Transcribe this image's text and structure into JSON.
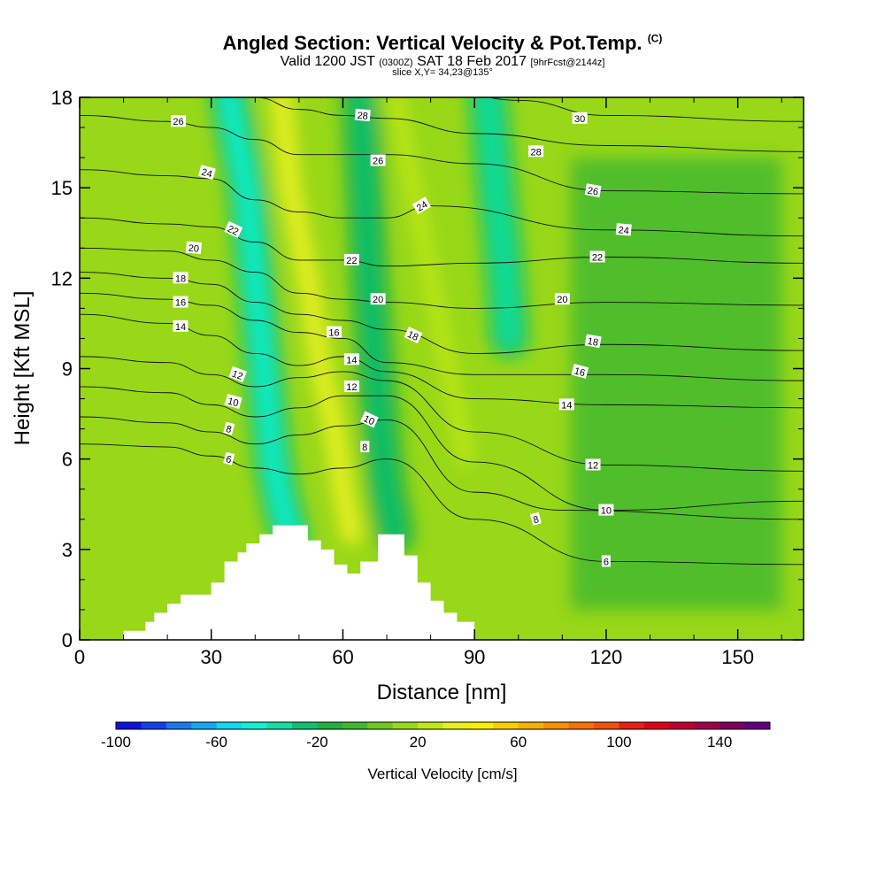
{
  "header": {
    "title": "Angled Section: Vertical Velocity & Pot.Temp.",
    "title_tag": "(C)",
    "valid_prefix": "Valid 1200 JST",
    "valid_utc": "(0300Z)",
    "valid_date": "SAT 18 Feb 2017",
    "forecast_tag": "[9hrFcst@2144z]",
    "slice": "slice X,Y= 34,23@135°"
  },
  "chart_data": {
    "type": "heatmap",
    "xlabel": "Distance [nm]",
    "ylabel": "Height [Kft MSL]",
    "xlim": [
      0,
      165
    ],
    "ylim": [
      0,
      18
    ],
    "xticks": [
      "0",
      "30",
      "60",
      "90",
      "120",
      "150"
    ],
    "yticks": [
      "0",
      "3",
      "6",
      "9",
      "12",
      "15",
      "18"
    ],
    "colorbar": {
      "label": "Vertical Velocity [cm/s]",
      "min": -100,
      "max": 150,
      "step": 10,
      "tick_labels": [
        "-100",
        "-60",
        "-20",
        "20",
        "60",
        "100",
        "140"
      ],
      "colors": [
        "#1010e0",
        "#1040f0",
        "#1878f0",
        "#10a8f0",
        "#10d8f0",
        "#10f0d0",
        "#10e0a0",
        "#10c070",
        "#20b040",
        "#40b830",
        "#70c820",
        "#98d818",
        "#c0e818",
        "#e8f020",
        "#f8f000",
        "#f8d000",
        "#f8b000",
        "#f89000",
        "#f87000",
        "#f05010",
        "#e82010",
        "#e00018",
        "#c00030",
        "#a00048",
        "#800060",
        "#600080"
      ]
    },
    "velocity_regions": [
      {
        "name": "downdraft-west",
        "x": [
          34,
          38,
          40,
          42,
          44,
          46,
          48
        ],
        "y": [
          18,
          15,
          12,
          9,
          6,
          4.5,
          3.5
        ],
        "value": -50
      },
      {
        "name": "updraft-west",
        "x": [
          46,
          48,
          52,
          55,
          58,
          60,
          62
        ],
        "y": [
          18,
          15,
          12,
          9,
          7,
          5,
          3.5
        ],
        "value": 30
      },
      {
        "name": "downdraft-central",
        "x": [
          64,
          66,
          68,
          70,
          72
        ],
        "y": [
          18,
          12,
          8,
          5,
          3.5
        ],
        "value": -30
      },
      {
        "name": "updraft-central",
        "x": [
          72,
          76,
          80,
          84,
          88
        ],
        "y": [
          18,
          15,
          12,
          9,
          6
        ],
        "value": 20
      },
      {
        "name": "downdraft-east",
        "x": [
          93,
          95,
          97,
          98
        ],
        "y": [
          18,
          15,
          12,
          10
        ],
        "value": -40
      },
      {
        "name": "sink-plateau-east",
        "x": [
          112,
          160
        ],
        "y": [
          1,
          16
        ],
        "value": -10
      }
    ],
    "isentropes": [
      {
        "value": 6,
        "x": [
          0,
          20,
          30,
          40,
          50,
          60,
          70,
          90,
          120,
          165
        ],
        "y": [
          6.5,
          6.4,
          6.1,
          5.7,
          5.5,
          5.7,
          6.0,
          4.0,
          2.6,
          2.5
        ]
      },
      {
        "value": 8,
        "x": [
          0,
          20,
          30,
          40,
          50,
          60,
          70,
          90,
          110,
          165
        ],
        "y": [
          7.4,
          7.2,
          6.9,
          6.5,
          6.8,
          7.1,
          7.3,
          4.9,
          4.3,
          4.0
        ]
      },
      {
        "value": 10,
        "x": [
          0,
          20,
          30,
          40,
          50,
          60,
          70,
          90,
          120,
          165
        ],
        "y": [
          8.4,
          8.2,
          7.8,
          7.4,
          7.7,
          8.1,
          8.1,
          5.9,
          4.3,
          4.6
        ]
      },
      {
        "value": 12,
        "x": [
          0,
          20,
          30,
          40,
          50,
          60,
          70,
          90,
          120,
          165
        ],
        "y": [
          9.4,
          9.2,
          8.8,
          8.4,
          8.7,
          8.9,
          8.6,
          6.9,
          5.8,
          5.6
        ]
      },
      {
        "value": 14,
        "x": [
          0,
          20,
          30,
          40,
          50,
          60,
          70,
          90,
          120,
          165
        ],
        "y": [
          10.8,
          10.5,
          10.1,
          9.5,
          9.1,
          9.4,
          8.9,
          8.0,
          7.8,
          7.7
        ]
      },
      {
        "value": 16,
        "x": [
          0,
          20,
          30,
          40,
          50,
          60,
          70,
          90,
          120,
          165
        ],
        "y": [
          11.5,
          11.3,
          11.1,
          10.6,
          10.2,
          10.0,
          9.2,
          8.8,
          8.8,
          8.6
        ]
      },
      {
        "value": 18,
        "x": [
          0,
          20,
          30,
          40,
          50,
          60,
          70,
          90,
          120,
          165
        ],
        "y": [
          12.2,
          12.0,
          11.8,
          11.2,
          10.8,
          10.6,
          10.3,
          9.5,
          9.8,
          9.6
        ]
      },
      {
        "value": 20,
        "x": [
          0,
          20,
          30,
          40,
          50,
          60,
          70,
          90,
          120,
          165
        ],
        "y": [
          13.0,
          12.9,
          12.6,
          12.2,
          11.5,
          11.3,
          11.2,
          11.0,
          11.2,
          11.1
        ]
      },
      {
        "value": 22,
        "x": [
          0,
          20,
          30,
          40,
          50,
          60,
          70,
          90,
          120,
          165
        ],
        "y": [
          14.0,
          13.8,
          13.7,
          13.2,
          12.6,
          12.6,
          12.4,
          12.5,
          12.7,
          12.5
        ]
      },
      {
        "value": 24,
        "x": [
          0,
          20,
          30,
          40,
          50,
          60,
          70,
          80,
          120,
          165
        ],
        "y": [
          15.6,
          15.4,
          15.3,
          14.6,
          14.2,
          14.0,
          14.0,
          14.4,
          13.6,
          13.4
        ]
      },
      {
        "value": 26,
        "x": [
          0,
          20,
          30,
          40,
          50,
          60,
          70,
          90,
          120,
          165
        ],
        "y": [
          17.4,
          17.2,
          17.0,
          16.6,
          16.1,
          16.1,
          16.1,
          15.8,
          14.9,
          14.8
        ]
      },
      {
        "value": 28,
        "x": [
          0,
          20,
          30,
          40,
          50,
          60,
          70,
          90,
          120,
          165
        ],
        "y": [
          18.4,
          18.3,
          18.2,
          18.0,
          17.6,
          17.4,
          17.3,
          16.8,
          16.4,
          16.2
        ]
      },
      {
        "value": 30,
        "x": [
          0,
          40,
          60,
          80,
          100,
          120,
          165
        ],
        "y": [
          19.4,
          19.2,
          18.8,
          18.4,
          17.9,
          17.4,
          17.2
        ]
      }
    ],
    "contour_labels": [
      {
        "text": "26",
        "x": 22.5,
        "y": 17.2,
        "angle": 0
      },
      {
        "text": "24",
        "x": 29,
        "y": 15.5,
        "angle": 15
      },
      {
        "text": "22",
        "x": 35,
        "y": 13.6,
        "angle": 25
      },
      {
        "text": "20",
        "x": 26,
        "y": 13.0,
        "angle": 5
      },
      {
        "text": "18",
        "x": 23,
        "y": 12.0,
        "angle": 0
      },
      {
        "text": "16",
        "x": 23,
        "y": 11.2,
        "angle": 0
      },
      {
        "text": "14",
        "x": 23,
        "y": 10.4,
        "angle": 0
      },
      {
        "text": "12",
        "x": 36,
        "y": 8.8,
        "angle": 20
      },
      {
        "text": "10",
        "x": 35,
        "y": 7.9,
        "angle": 15
      },
      {
        "text": "8",
        "x": 34,
        "y": 7.0,
        "angle": 15
      },
      {
        "text": "6",
        "x": 34,
        "y": 6.0,
        "angle": 15
      },
      {
        "text": "28",
        "x": 64.5,
        "y": 17.4,
        "angle": 5
      },
      {
        "text": "26",
        "x": 68,
        "y": 15.9,
        "angle": 0
      },
      {
        "text": "24",
        "x": 78,
        "y": 14.4,
        "angle": -30
      },
      {
        "text": "22",
        "x": 62,
        "y": 12.6,
        "angle": 0
      },
      {
        "text": "20",
        "x": 68,
        "y": 11.3,
        "angle": 0
      },
      {
        "text": "18",
        "x": 76,
        "y": 10.1,
        "angle": 25
      },
      {
        "text": "16",
        "x": 58,
        "y": 10.2,
        "angle": 0
      },
      {
        "text": "14",
        "x": 62,
        "y": 9.3,
        "angle": 0
      },
      {
        "text": "12",
        "x": 62,
        "y": 8.4,
        "angle": 0
      },
      {
        "text": "10",
        "x": 66,
        "y": 7.3,
        "angle": 25
      },
      {
        "text": "8",
        "x": 65,
        "y": 6.4,
        "angle": 0
      },
      {
        "text": "30",
        "x": 114,
        "y": 17.3,
        "angle": 0
      },
      {
        "text": "28",
        "x": 104,
        "y": 16.2,
        "angle": 0
      },
      {
        "text": "26",
        "x": 117,
        "y": 14.9,
        "angle": 10
      },
      {
        "text": "24",
        "x": 124,
        "y": 13.6,
        "angle": 5
      },
      {
        "text": "22",
        "x": 118,
        "y": 12.7,
        "angle": 0
      },
      {
        "text": "20",
        "x": 110,
        "y": 11.3,
        "angle": 0
      },
      {
        "text": "18",
        "x": 117,
        "y": 9.9,
        "angle": 10
      },
      {
        "text": "16",
        "x": 114,
        "y": 8.9,
        "angle": 15
      },
      {
        "text": "14",
        "x": 111,
        "y": 7.8,
        "angle": 0
      },
      {
        "text": "12",
        "x": 117,
        "y": 5.8,
        "angle": 0
      },
      {
        "text": "10",
        "x": 120,
        "y": 4.3,
        "angle": 0
      },
      {
        "text": "8",
        "x": 104,
        "y": 4.0,
        "angle": -15
      },
      {
        "text": "6",
        "x": 120,
        "y": 2.6,
        "angle": 0
      }
    ],
    "terrain": {
      "x": [
        10,
        10,
        15,
        15,
        17,
        17,
        20,
        20,
        23,
        23,
        30,
        30,
        33,
        33,
        36,
        36,
        38,
        38,
        41,
        41,
        44,
        44,
        47,
        47,
        50,
        50,
        52,
        52,
        55,
        55,
        58,
        58,
        61,
        61,
        64,
        64,
        68,
        68,
        71,
        71,
        74,
        74,
        77,
        77,
        80,
        80,
        83,
        83,
        86,
        86,
        90,
        90
      ],
      "y": [
        0,
        0.3,
        0.3,
        0.6,
        0.6,
        0.9,
        0.9,
        1.2,
        1.2,
        1.5,
        1.5,
        1.9,
        1.9,
        2.6,
        2.6,
        2.9,
        2.9,
        3.2,
        3.2,
        3.5,
        3.5,
        3.8,
        3.8,
        3.8,
        3.8,
        3.8,
        3.8,
        3.3,
        3.3,
        3.0,
        3.0,
        2.5,
        2.5,
        2.2,
        2.2,
        2.6,
        2.6,
        3.5,
        3.5,
        3.5,
        3.5,
        2.8,
        2.8,
        1.9,
        1.9,
        1.3,
        1.3,
        0.9,
        0.9,
        0.6,
        0.6,
        0.3
      ]
    },
    "grid": false,
    "legend_position": "bottom"
  }
}
